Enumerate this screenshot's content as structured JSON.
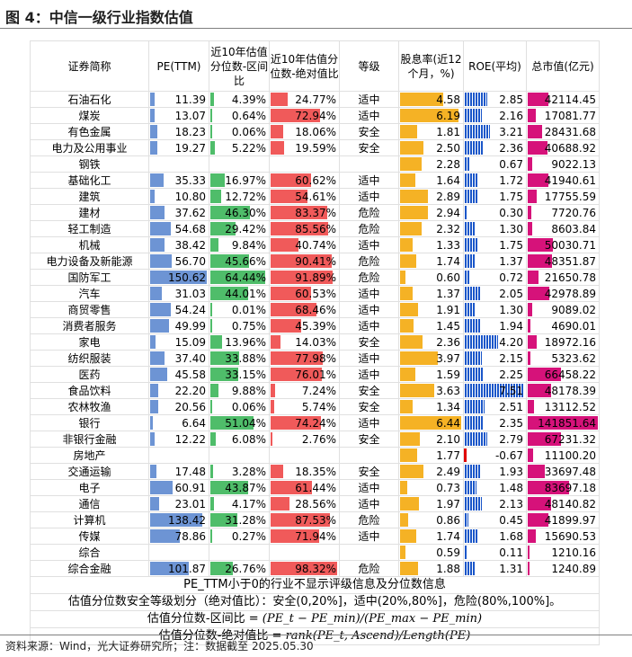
{
  "title": "图 4：中信一级行业指数估值",
  "source": "资料来源：Wind，光大证券研究所；注：数据截至 2025.05.30",
  "headers": [
    "证券简称",
    "PE(TTM)",
    "近10年估值分位数-区间比",
    "近10年估值分位数-绝对值比",
    "等级",
    "股息率(近12个月，%)",
    "ROE(平均)",
    "总市值(亿元)"
  ],
  "colors": {
    "pe": "#6d94d4",
    "pct_range": "#4fbd6a",
    "pct_abs": "#f05a5a",
    "div": "#f5b225",
    "roe": "#1a56c9",
    "roe_neg": "#e00000",
    "cap": "#d6127a"
  },
  "scales": {
    "pe_max": 150.62,
    "pct_max": 100,
    "div_max": 6.44,
    "roe_max": 7.51,
    "cap_max": 141851.64
  },
  "rows": [
    {
      "name": "石油石化",
      "pe": "11.39",
      "pr": "4.39%",
      "pa": "24.77%",
      "lvl": "适中",
      "div": "4.58",
      "roe": "2.85",
      "cap": "42114.45"
    },
    {
      "name": "煤炭",
      "pe": "13.07",
      "pr": "0.64%",
      "pa": "72.94%",
      "lvl": "适中",
      "div": "6.19",
      "roe": "2.16",
      "cap": "17081.77"
    },
    {
      "name": "有色金属",
      "pe": "18.23",
      "pr": "0.06%",
      "pa": "18.06%",
      "lvl": "安全",
      "div": "1.81",
      "roe": "3.21",
      "cap": "28431.68"
    },
    {
      "name": "电力及公用事业",
      "pe": "19.27",
      "pr": "5.22%",
      "pa": "19.59%",
      "lvl": "安全",
      "div": "2.50",
      "roe": "2.36",
      "cap": "40688.92"
    },
    {
      "name": "钢铁",
      "pe": "",
      "pr": "",
      "pa": "",
      "lvl": "",
      "div": "2.28",
      "roe": "0.67",
      "cap": "9022.13"
    },
    {
      "name": "基础化工",
      "pe": "35.33",
      "pr": "16.97%",
      "pa": "60.62%",
      "lvl": "适中",
      "div": "1.64",
      "roe": "1.72",
      "cap": "41940.61"
    },
    {
      "name": "建筑",
      "pe": "10.80",
      "pr": "12.72%",
      "pa": "54.61%",
      "lvl": "适中",
      "div": "2.89",
      "roe": "1.75",
      "cap": "17755.59"
    },
    {
      "name": "建材",
      "pe": "37.62",
      "pr": "46.30%",
      "pa": "83.37%",
      "lvl": "危险",
      "div": "2.94",
      "roe": "0.30",
      "cap": "7720.76"
    },
    {
      "name": "轻工制造",
      "pe": "54.68",
      "pr": "29.42%",
      "pa": "85.56%",
      "lvl": "危险",
      "div": "2.32",
      "roe": "1.30",
      "cap": "8603.84"
    },
    {
      "name": "机械",
      "pe": "38.42",
      "pr": "9.84%",
      "pa": "40.74%",
      "lvl": "适中",
      "div": "1.33",
      "roe": "1.75",
      "cap": "50030.71"
    },
    {
      "name": "电力设备及新能源",
      "pe": "56.70",
      "pr": "45.66%",
      "pa": "90.41%",
      "lvl": "危险",
      "div": "1.74",
      "roe": "1.37",
      "cap": "48351.87"
    },
    {
      "name": "国防军工",
      "pe": "150.62",
      "pr": "64.44%",
      "pa": "91.89%",
      "lvl": "危险",
      "div": "0.60",
      "roe": "0.72",
      "cap": "21650.78"
    },
    {
      "name": "汽车",
      "pe": "31.03",
      "pr": "44.01%",
      "pa": "60.53%",
      "lvl": "适中",
      "div": "1.37",
      "roe": "2.05",
      "cap": "42978.89"
    },
    {
      "name": "商贸零售",
      "pe": "54.24",
      "pr": "0.01%",
      "pa": "68.46%",
      "lvl": "适中",
      "div": "1.91",
      "roe": "1.30",
      "cap": "9089.02"
    },
    {
      "name": "消费者服务",
      "pe": "49.99",
      "pr": "0.75%",
      "pa": "45.39%",
      "lvl": "适中",
      "div": "1.45",
      "roe": "1.94",
      "cap": "4690.01"
    },
    {
      "name": "家电",
      "pe": "15.09",
      "pr": "13.96%",
      "pa": "14.03%",
      "lvl": "安全",
      "div": "2.36",
      "roe": "4.20",
      "cap": "18972.16"
    },
    {
      "name": "纺织服装",
      "pe": "37.40",
      "pr": "33.88%",
      "pa": "77.98%",
      "lvl": "适中",
      "div": "3.97",
      "roe": "2.15",
      "cap": "5323.62"
    },
    {
      "name": "医药",
      "pe": "45.58",
      "pr": "33.15%",
      "pa": "76.01%",
      "lvl": "适中",
      "div": "1.59",
      "roe": "2.25",
      "cap": "66458.22"
    },
    {
      "name": "食品饮料",
      "pe": "22.20",
      "pr": "9.88%",
      "pa": "7.24%",
      "lvl": "安全",
      "div": "3.63",
      "roe": "7.51",
      "cap": "48178.39"
    },
    {
      "name": "农林牧渔",
      "pe": "20.56",
      "pr": "0.06%",
      "pa": "5.74%",
      "lvl": "安全",
      "div": "1.34",
      "roe": "2.51",
      "cap": "13112.52"
    },
    {
      "name": "银行",
      "pe": "6.64",
      "pr": "51.04%",
      "pa": "74.24%",
      "lvl": "适中",
      "div": "6.44",
      "roe": "2.35",
      "cap": "141851.64"
    },
    {
      "name": "非银行金融",
      "pe": "12.22",
      "pr": "6.08%",
      "pa": "2.76%",
      "lvl": "安全",
      "div": "2.10",
      "roe": "2.79",
      "cap": "67231.32"
    },
    {
      "name": "房地产",
      "pe": "",
      "pr": "",
      "pa": "",
      "lvl": "",
      "div": "1.77",
      "roe": "-0.67",
      "cap": "11100.20"
    },
    {
      "name": "交通运输",
      "pe": "17.48",
      "pr": "3.28%",
      "pa": "18.35%",
      "lvl": "安全",
      "div": "2.49",
      "roe": "1.93",
      "cap": "33697.48"
    },
    {
      "name": "电子",
      "pe": "60.91",
      "pr": "43.87%",
      "pa": "61.44%",
      "lvl": "适中",
      "div": "0.73",
      "roe": "1.48",
      "cap": "83697.18"
    },
    {
      "name": "通信",
      "pe": "23.01",
      "pr": "4.17%",
      "pa": "28.56%",
      "lvl": "适中",
      "div": "1.97",
      "roe": "2.13",
      "cap": "48140.82"
    },
    {
      "name": "计算机",
      "pe": "138.42",
      "pr": "31.28%",
      "pa": "87.53%",
      "lvl": "危险",
      "div": "0.86",
      "roe": "0.45",
      "cap": "41899.97"
    },
    {
      "name": "传媒",
      "pe": "78.86",
      "pr": "0.27%",
      "pa": "71.94%",
      "lvl": "适中",
      "div": "1.74",
      "roe": "1.68",
      "cap": "15690.53"
    },
    {
      "name": "综合",
      "pe": "",
      "pr": "",
      "pa": "",
      "lvl": "",
      "div": "0.59",
      "roe": "0.11",
      "cap": "1210.16"
    },
    {
      "name": "综合金融",
      "pe": "101.87",
      "pr": "26.76%",
      "pa": "98.32%",
      "lvl": "危险",
      "div": "1.88",
      "roe": "1.31",
      "cap": "1240.89"
    }
  ],
  "notes": {
    "n1": "PE_TTM小于0的行业不显示评级信息及分位数信息",
    "n2": "估值分位数安全等级划分（绝对值比）：安全(0,20%]，适中(20%,80%]，危险(80%,100%]。",
    "n3_label": "估值分位数-区间比 =",
    "n3_formula": "(PE_t − PE_min)/(PE_max − PE_min)",
    "n4_label": "估值分位数-绝对值比 =",
    "n4_formula": "rank(PE_t, Ascend)/Length(PE)"
  }
}
